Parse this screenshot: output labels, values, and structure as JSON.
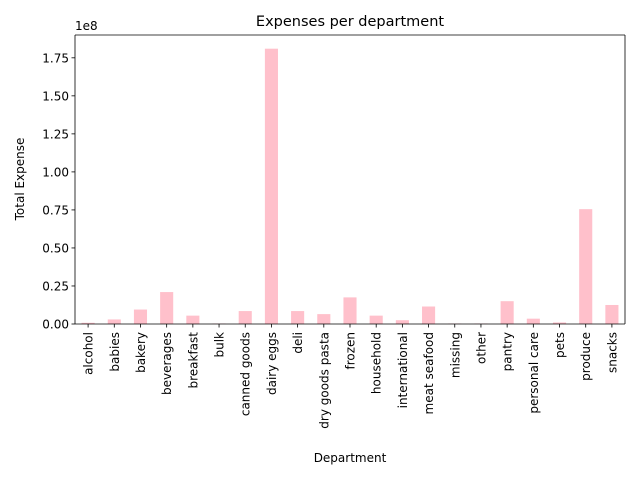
{
  "chart_data": {
    "type": "bar",
    "title": "Expenses per department",
    "xlabel": "Department",
    "ylabel": "Total Expense",
    "y_scale_label": "1e8",
    "y_multiplier": 100000000,
    "ylim": [
      0,
      1.9
    ],
    "yticks": [
      0.0,
      0.25,
      0.5,
      0.75,
      1.0,
      1.25,
      1.5,
      1.75
    ],
    "ytick_labels": [
      "0.00",
      "0.25",
      "0.50",
      "0.75",
      "1.00",
      "1.25",
      "1.50",
      "1.75"
    ],
    "grid": false,
    "bar_color": "#ffc0cb",
    "categories": [
      "alcohol",
      "babies",
      "bakery",
      "beverages",
      "breakfast",
      "bulk",
      "canned goods",
      "dairy eggs",
      "deli",
      "dry goods pasta",
      "frozen",
      "household",
      "international",
      "meat seafood",
      "missing",
      "other",
      "pantry",
      "personal care",
      "pets",
      "produce",
      "snacks"
    ],
    "values": [
      0.008,
      0.03,
      0.095,
      0.21,
      0.055,
      0.003,
      0.085,
      1.81,
      0.085,
      0.065,
      0.175,
      0.055,
      0.025,
      0.115,
      0.003,
      0.003,
      0.15,
      0.035,
      0.01,
      0.755,
      0.125
    ]
  }
}
